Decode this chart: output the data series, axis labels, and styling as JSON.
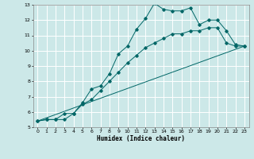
{
  "title": "",
  "xlabel": "Humidex (Indice chaleur)",
  "xlim": [
    -0.5,
    23.5
  ],
  "ylim": [
    5,
    13
  ],
  "xticks": [
    0,
    1,
    2,
    3,
    4,
    5,
    6,
    7,
    8,
    9,
    10,
    11,
    12,
    13,
    14,
    15,
    16,
    17,
    18,
    19,
    20,
    21,
    22,
    23
  ],
  "yticks": [
    5,
    6,
    7,
    8,
    9,
    10,
    11,
    12,
    13
  ],
  "bg_color": "#cce8e8",
  "grid_color": "#ffffff",
  "line_color": "#006666",
  "line1_x": [
    0,
    1,
    2,
    3,
    4,
    5,
    6,
    7,
    8,
    9,
    10,
    11,
    12,
    13,
    14,
    15,
    16,
    17,
    18,
    19,
    20,
    21,
    22,
    23
  ],
  "line1_y": [
    5.4,
    5.5,
    5.5,
    5.5,
    5.9,
    6.6,
    7.5,
    7.7,
    8.5,
    9.8,
    10.3,
    11.4,
    12.1,
    13.1,
    12.7,
    12.6,
    12.6,
    12.8,
    11.7,
    12.0,
    12.0,
    11.3,
    10.4,
    10.3
  ],
  "line2_x": [
    0,
    1,
    2,
    3,
    4,
    5,
    6,
    7,
    8,
    9,
    10,
    11,
    12,
    13,
    14,
    15,
    16,
    17,
    18,
    19,
    20,
    21,
    22,
    23
  ],
  "line2_y": [
    5.4,
    5.5,
    5.5,
    5.9,
    5.9,
    6.5,
    6.8,
    7.4,
    8.0,
    8.6,
    9.2,
    9.7,
    10.2,
    10.5,
    10.8,
    11.1,
    11.1,
    11.3,
    11.3,
    11.5,
    11.5,
    10.5,
    10.3,
    10.3
  ],
  "line3_x": [
    0,
    23
  ],
  "line3_y": [
    5.4,
    10.3
  ]
}
